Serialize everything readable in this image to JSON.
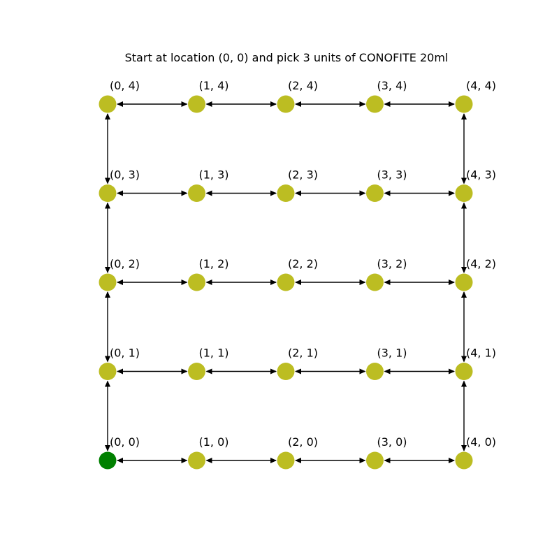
{
  "title": "Start  at location (0, 0) and pick 3 units of CONOFITE 20ml",
  "colors": {
    "node_default": "#bcbd22",
    "node_start": "#008000",
    "edge": "#000000",
    "background": "#ffffff"
  },
  "grid": {
    "columns": 5,
    "rows": 5,
    "nodes": [
      {
        "x": 0,
        "y": 0,
        "label": "(0, 0)",
        "role": "start"
      },
      {
        "x": 1,
        "y": 0,
        "label": "(1, 0)",
        "role": "default"
      },
      {
        "x": 2,
        "y": 0,
        "label": "(2, 0)",
        "role": "default"
      },
      {
        "x": 3,
        "y": 0,
        "label": "(3, 0)",
        "role": "default"
      },
      {
        "x": 4,
        "y": 0,
        "label": "(4, 0)",
        "role": "default"
      },
      {
        "x": 0,
        "y": 1,
        "label": "(0, 1)",
        "role": "default"
      },
      {
        "x": 1,
        "y": 1,
        "label": "(1, 1)",
        "role": "default"
      },
      {
        "x": 2,
        "y": 1,
        "label": "(2, 1)",
        "role": "default"
      },
      {
        "x": 3,
        "y": 1,
        "label": "(3, 1)",
        "role": "default"
      },
      {
        "x": 4,
        "y": 1,
        "label": "(4, 1)",
        "role": "default"
      },
      {
        "x": 0,
        "y": 2,
        "label": "(0, 2)",
        "role": "default"
      },
      {
        "x": 1,
        "y": 2,
        "label": "(1, 2)",
        "role": "default"
      },
      {
        "x": 2,
        "y": 2,
        "label": "(2, 2)",
        "role": "default"
      },
      {
        "x": 3,
        "y": 2,
        "label": "(3, 2)",
        "role": "default"
      },
      {
        "x": 4,
        "y": 2,
        "label": "(4, 2)",
        "role": "default"
      },
      {
        "x": 0,
        "y": 3,
        "label": "(0, 3)",
        "role": "default"
      },
      {
        "x": 1,
        "y": 3,
        "label": "(1, 3)",
        "role": "default"
      },
      {
        "x": 2,
        "y": 3,
        "label": "(2, 3)",
        "role": "default"
      },
      {
        "x": 3,
        "y": 3,
        "label": "(3, 3)",
        "role": "default"
      },
      {
        "x": 4,
        "y": 3,
        "label": "(4, 3)",
        "role": "default"
      },
      {
        "x": 0,
        "y": 4,
        "label": "(0, 4)",
        "role": "default"
      },
      {
        "x": 1,
        "y": 4,
        "label": "(1, 4)",
        "role": "default"
      },
      {
        "x": 2,
        "y": 4,
        "label": "(2, 4)",
        "role": "default"
      },
      {
        "x": 3,
        "y": 4,
        "label": "(3, 4)",
        "role": "default"
      },
      {
        "x": 4,
        "y": 4,
        "label": "(4, 4)",
        "role": "default"
      }
    ],
    "edges": [
      {
        "from": [
          0,
          0
        ],
        "to": [
          1,
          0
        ]
      },
      {
        "from": [
          1,
          0
        ],
        "to": [
          2,
          0
        ]
      },
      {
        "from": [
          2,
          0
        ],
        "to": [
          3,
          0
        ]
      },
      {
        "from": [
          3,
          0
        ],
        "to": [
          4,
          0
        ]
      },
      {
        "from": [
          0,
          1
        ],
        "to": [
          1,
          1
        ]
      },
      {
        "from": [
          1,
          1
        ],
        "to": [
          2,
          1
        ]
      },
      {
        "from": [
          2,
          1
        ],
        "to": [
          3,
          1
        ]
      },
      {
        "from": [
          3,
          1
        ],
        "to": [
          4,
          1
        ]
      },
      {
        "from": [
          0,
          2
        ],
        "to": [
          1,
          2
        ]
      },
      {
        "from": [
          1,
          2
        ],
        "to": [
          2,
          2
        ]
      },
      {
        "from": [
          2,
          2
        ],
        "to": [
          3,
          2
        ]
      },
      {
        "from": [
          3,
          2
        ],
        "to": [
          4,
          2
        ]
      },
      {
        "from": [
          0,
          3
        ],
        "to": [
          1,
          3
        ]
      },
      {
        "from": [
          1,
          3
        ],
        "to": [
          2,
          3
        ]
      },
      {
        "from": [
          2,
          3
        ],
        "to": [
          3,
          3
        ]
      },
      {
        "from": [
          3,
          3
        ],
        "to": [
          4,
          3
        ]
      },
      {
        "from": [
          0,
          4
        ],
        "to": [
          1,
          4
        ]
      },
      {
        "from": [
          1,
          4
        ],
        "to": [
          2,
          4
        ]
      },
      {
        "from": [
          2,
          4
        ],
        "to": [
          3,
          4
        ]
      },
      {
        "from": [
          3,
          4
        ],
        "to": [
          4,
          4
        ]
      },
      {
        "from": [
          0,
          0
        ],
        "to": [
          0,
          1
        ]
      },
      {
        "from": [
          0,
          1
        ],
        "to": [
          0,
          2
        ]
      },
      {
        "from": [
          0,
          2
        ],
        "to": [
          0,
          3
        ]
      },
      {
        "from": [
          0,
          3
        ],
        "to": [
          0,
          4
        ]
      },
      {
        "from": [
          4,
          0
        ],
        "to": [
          4,
          1
        ]
      },
      {
        "from": [
          4,
          1
        ],
        "to": [
          4,
          2
        ]
      },
      {
        "from": [
          4,
          2
        ],
        "to": [
          4,
          3
        ]
      },
      {
        "from": [
          4,
          3
        ],
        "to": [
          4,
          4
        ]
      }
    ],
    "edge_style": "bidirectional-arrow"
  }
}
